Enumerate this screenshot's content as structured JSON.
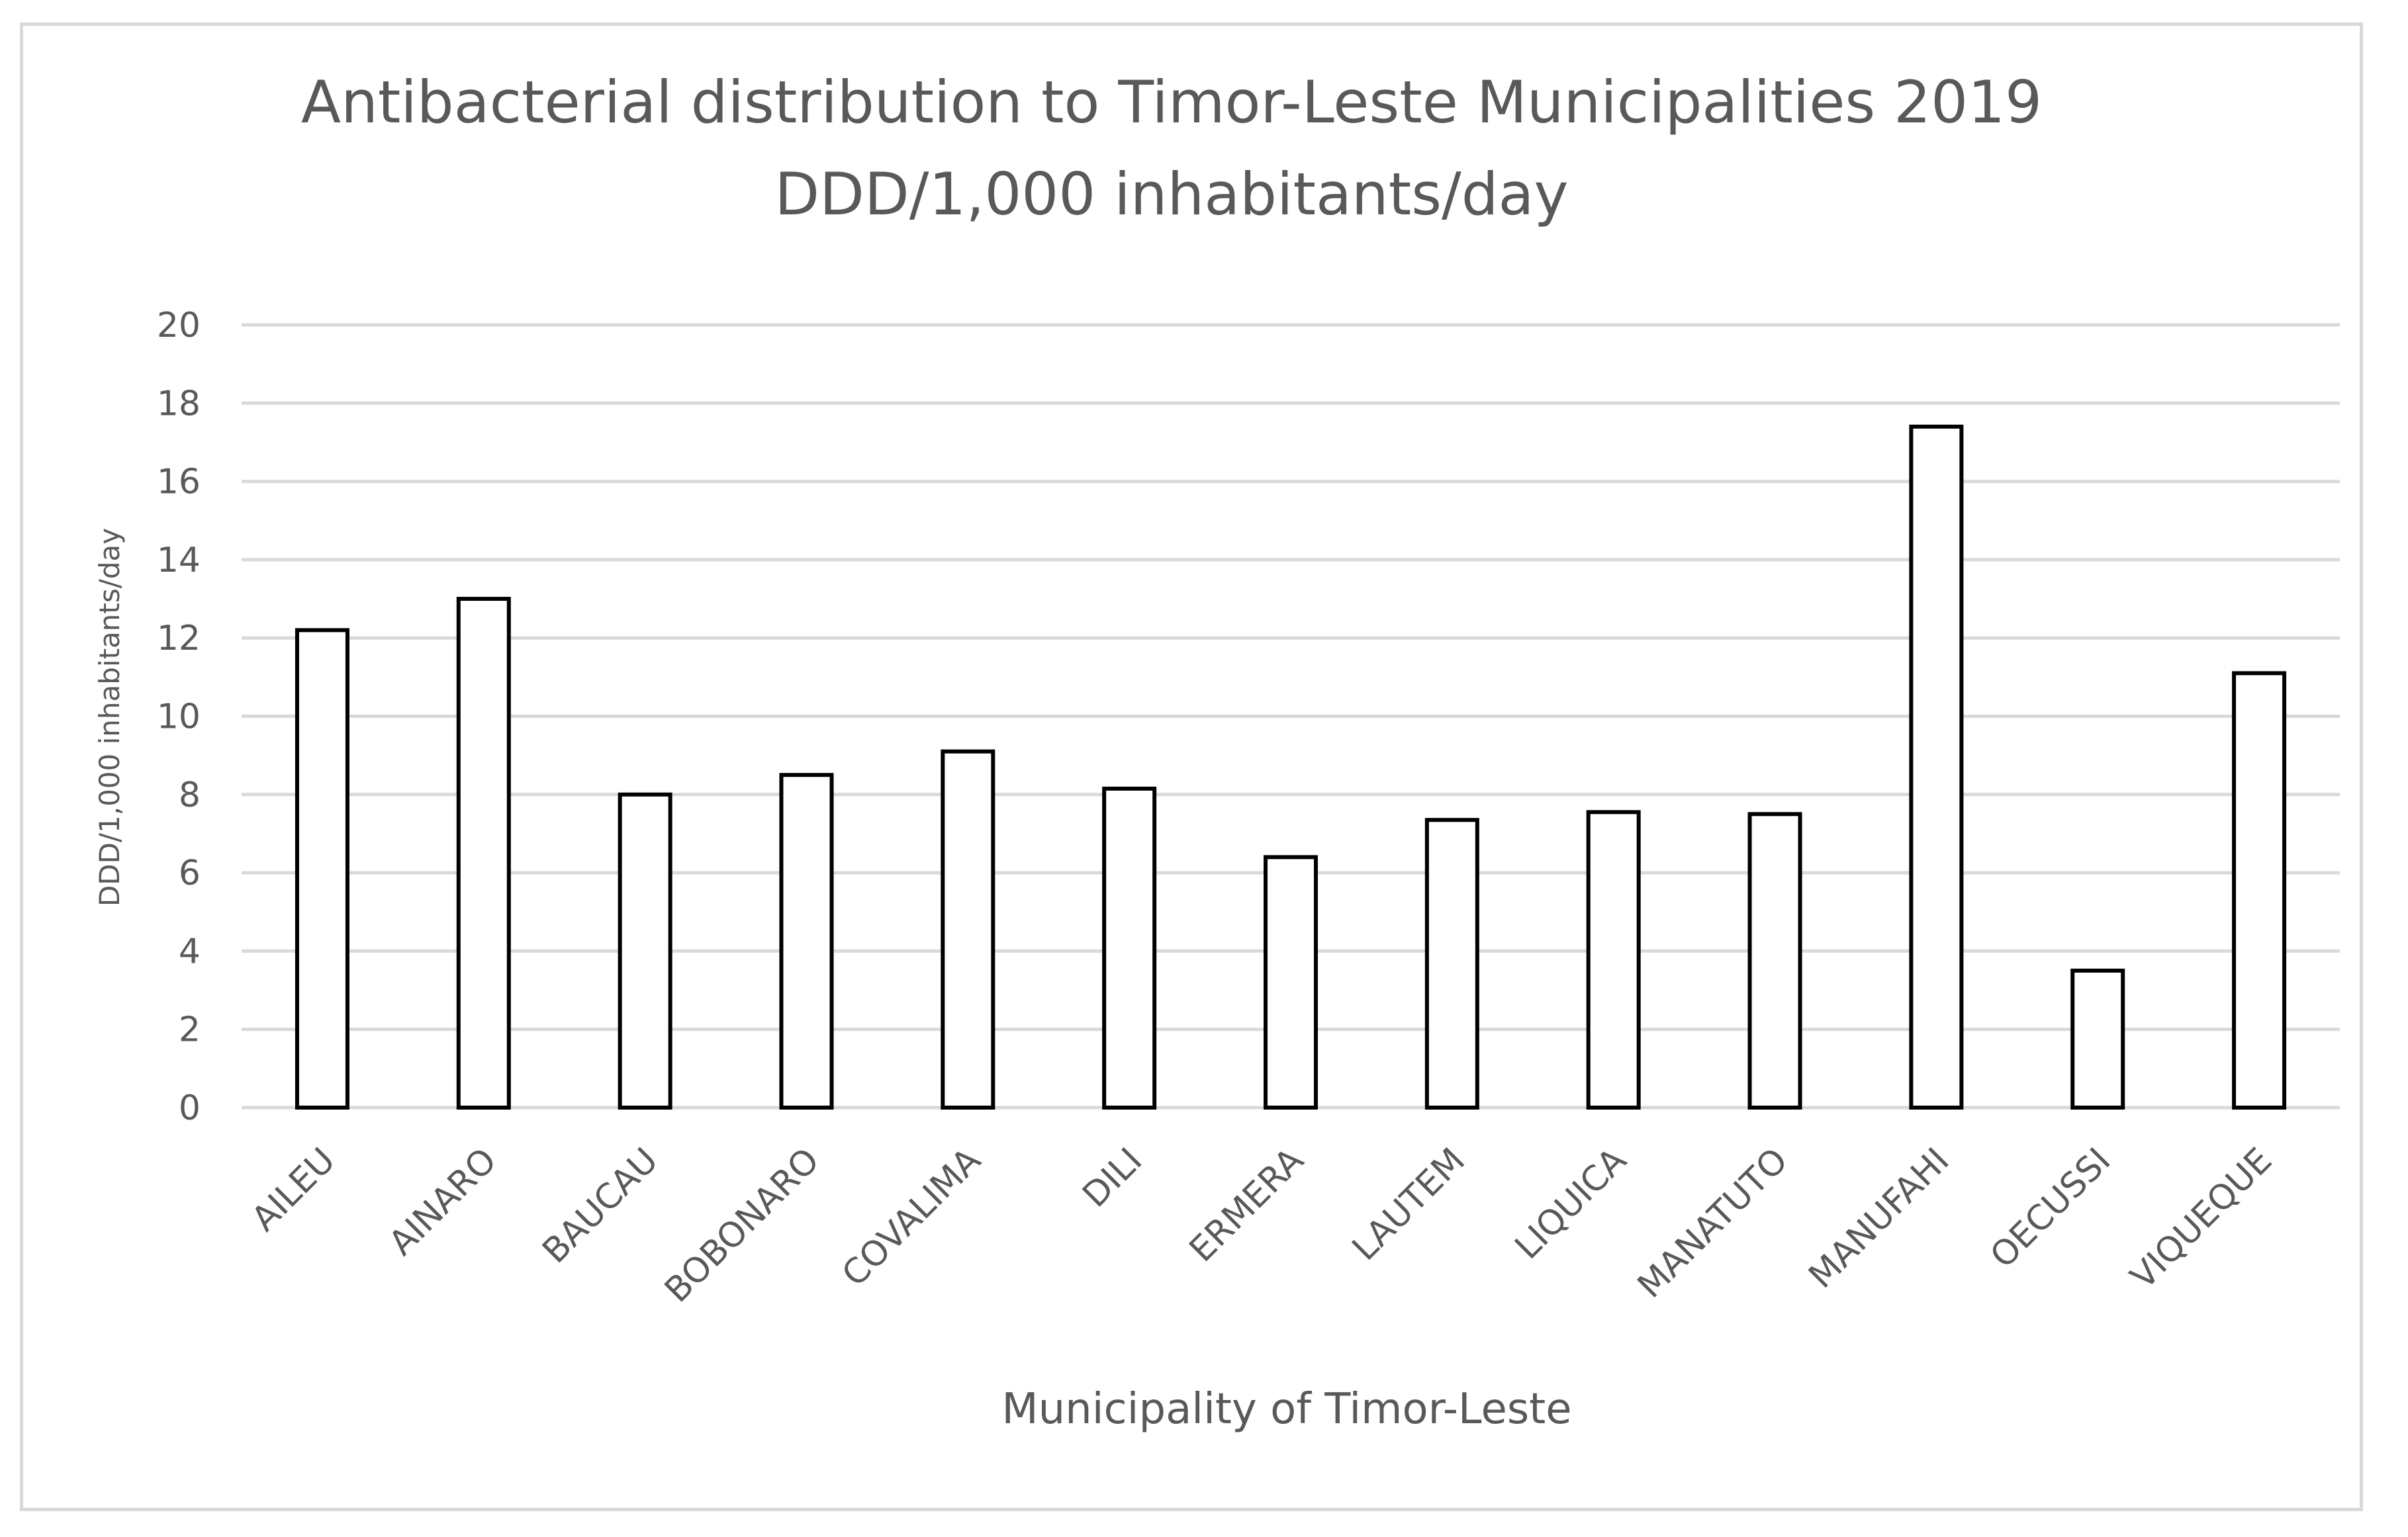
{
  "chart_data": {
    "type": "bar",
    "title": "Antibacterial distribution to Timor-Leste Municipalities 2019",
    "subtitle": "DDD/1,000 inhabitants/day",
    "xlabel": "Municipality of Timor-Leste",
    "ylabel": "DDD/1,000 inhabitants/day",
    "ylim": [
      0,
      20
    ],
    "yticks": [
      0,
      2,
      4,
      6,
      8,
      10,
      12,
      14,
      16,
      18,
      20
    ],
    "grid": true,
    "categories": [
      "AILEU",
      "AINARO",
      "BAUCAU",
      "BOBONARO",
      "COVALIMA",
      "DILI",
      "ERMERA",
      "LAUTEM",
      "LIQUICA",
      "MANATUTO",
      "MANUFAHI",
      "OECUSSI",
      "VIQUEQUE"
    ],
    "values": [
      12.2,
      13.0,
      8.0,
      8.5,
      9.1,
      8.15,
      6.4,
      7.35,
      7.55,
      7.5,
      17.4,
      3.5,
      11.1
    ],
    "colors": {
      "bar_fill": "#ffffff",
      "bar_stroke": "#000000",
      "grid": "#d9d9d9",
      "text": "#595959"
    }
  }
}
